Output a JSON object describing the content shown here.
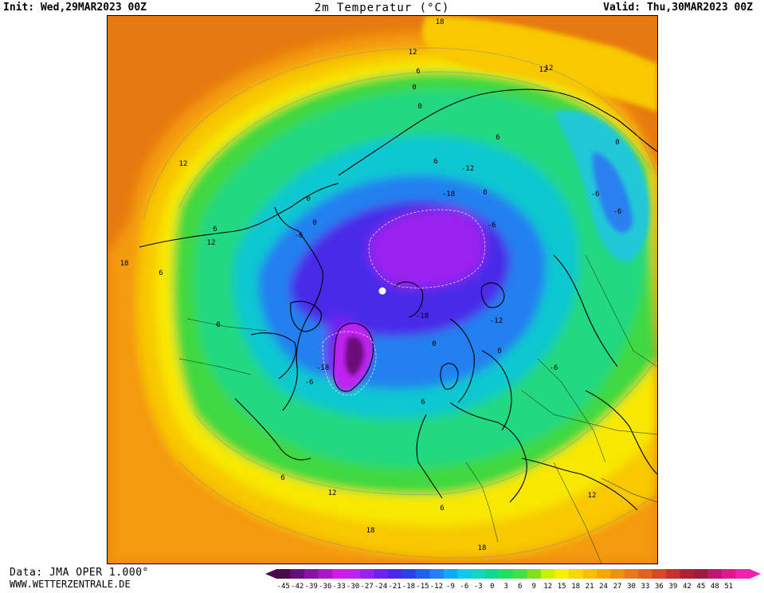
{
  "header": {
    "init": "Init: Wed,29MAR2023 00Z",
    "title": "2m Temperatur (°C)",
    "valid": "Valid: Thu,30MAR2023 00Z"
  },
  "footer": {
    "data_source": "Data: JMA OPER 1.000°",
    "website": "WWW.WETTERZENTRALE.DE"
  },
  "legend": {
    "ticks": [
      "-45",
      "-42",
      "-39",
      "-36",
      "-33",
      "-30",
      "-27",
      "-24",
      "-21",
      "-18",
      "-15",
      "-12",
      "-9",
      "-6",
      "-3",
      "0",
      "3",
      "6",
      "9",
      "12",
      "15",
      "18",
      "21",
      "24",
      "27",
      "30",
      "33",
      "36",
      "39",
      "42",
      "45",
      "48",
      "51"
    ],
    "colors": [
      "#4a0a4a",
      "#6a0c7a",
      "#8a10a8",
      "#b014c8",
      "#d018e8",
      "#c020f0",
      "#9a20f0",
      "#7020f0",
      "#4a28e8",
      "#2a40e8",
      "#2060f0",
      "#2080f8",
      "#10a8f8",
      "#10c8f0",
      "#10d8c0",
      "#10d890",
      "#20e060",
      "#40e040",
      "#80e020",
      "#c8f000",
      "#f8f000",
      "#f8d800",
      "#f8c000",
      "#f8a800",
      "#f09010",
      "#e87818",
      "#e06020",
      "#d84828",
      "#c83030",
      "#b02030",
      "#a01840",
      "#c01870",
      "#e01890",
      "#f020b0"
    ]
  },
  "map": {
    "labels": [
      {
        "value": "18"
      },
      {
        "value": "12"
      },
      {
        "value": "12"
      },
      {
        "value": "12"
      },
      {
        "value": "6"
      },
      {
        "value": "0"
      },
      {
        "value": "0"
      },
      {
        "value": "6"
      },
      {
        "value": "0"
      },
      {
        "value": "-6"
      },
      {
        "value": "-12"
      },
      {
        "value": "-18"
      },
      {
        "value": "0"
      },
      {
        "value": "-6"
      },
      {
        "value": "6"
      },
      {
        "value": "0"
      },
      {
        "value": "-6"
      },
      {
        "value": "6"
      },
      {
        "value": "6"
      },
      {
        "value": "0"
      },
      {
        "value": "-6"
      },
      {
        "value": "-18"
      },
      {
        "value": "-18"
      },
      {
        "value": "0"
      },
      {
        "value": "-12"
      },
      {
        "value": "0"
      },
      {
        "value": "6"
      },
      {
        "value": "-6"
      },
      {
        "value": "6"
      },
      {
        "value": "12"
      },
      {
        "value": "6"
      },
      {
        "value": "12"
      },
      {
        "value": "18"
      },
      {
        "value": "12"
      },
      {
        "value": "18"
      },
      {
        "value": "18"
      },
      {
        "value": "12"
      },
      {
        "value": "0"
      },
      {
        "value": "-6"
      }
    ]
  }
}
